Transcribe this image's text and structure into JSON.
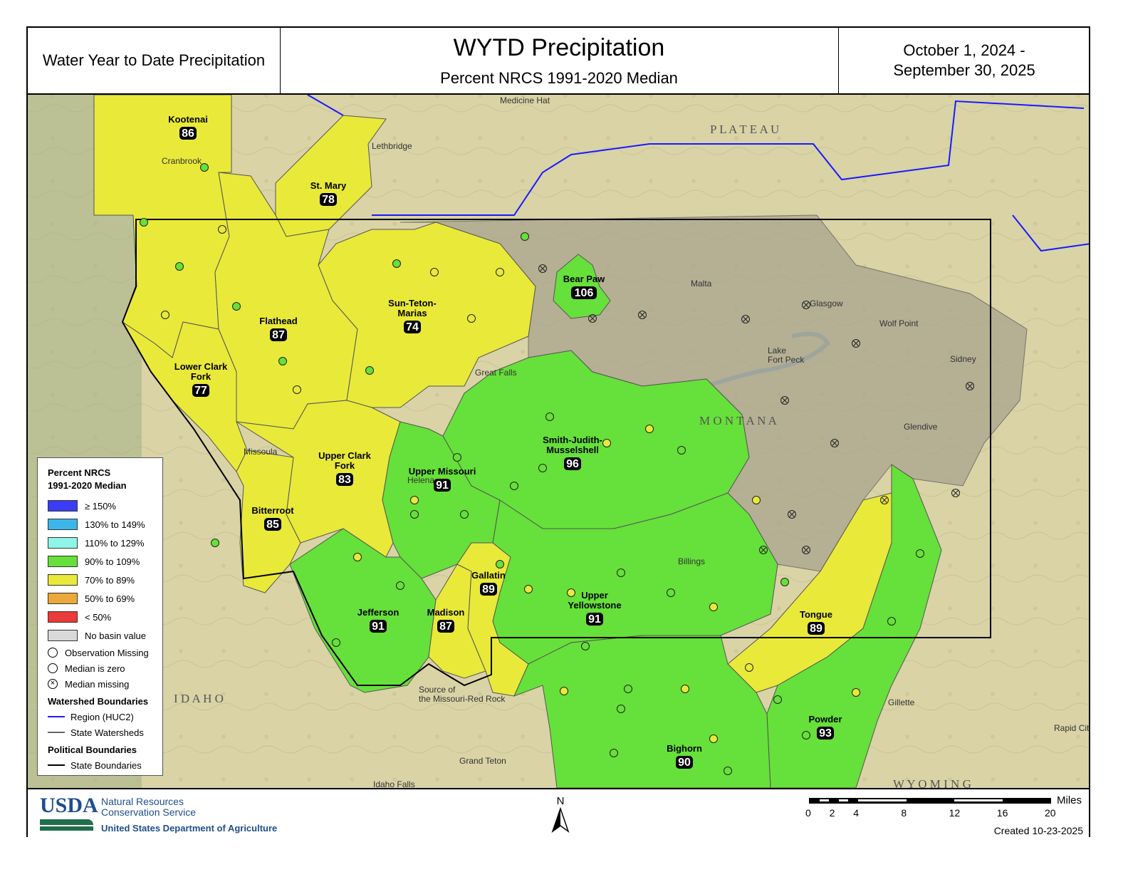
{
  "header": {
    "left_title": "Water Year to Date Precipitation",
    "title": "WYTD Precipitation",
    "subtitle": "Percent NRCS 1991-2020 Median",
    "date_line1": "October 1, 2024 -",
    "date_line2": "September 30, 2025"
  },
  "colors": {
    "ge150": "#3b3cf5",
    "130_149": "#3cb6ea",
    "110_129": "#8ff5e6",
    "90_109": "#66e03a",
    "70_89": "#e9e93a",
    "50_69": "#eaa93a",
    "lt50": "#ea3a3a",
    "no_value": "#d9d9d9"
  },
  "basins": [
    {
      "name": "Kootenai",
      "value": "86",
      "class": "70_89"
    },
    {
      "name": "St. Mary",
      "value": "78",
      "class": "70_89"
    },
    {
      "name": "Flathead",
      "value": "87",
      "class": "70_89"
    },
    {
      "name": "Sun-Teton-\nMarias",
      "value": "74",
      "class": "70_89"
    },
    {
      "name": "Lower Clark\nFork",
      "value": "77",
      "class": "70_89"
    },
    {
      "name": "Bear Paw",
      "value": "106",
      "class": "90_109"
    },
    {
      "name": "Upper Clark\nFork",
      "value": "83",
      "class": "70_89"
    },
    {
      "name": "Bitterroot",
      "value": "85",
      "class": "70_89"
    },
    {
      "name": "Upper Missouri",
      "value": "91",
      "class": "90_109"
    },
    {
      "name": "Smith-Judith-\nMusselshell",
      "value": "96",
      "class": "90_109"
    },
    {
      "name": "Jefferson",
      "value": "91",
      "class": "90_109"
    },
    {
      "name": "Madison",
      "value": "87",
      "class": "70_89"
    },
    {
      "name": "Gallatin",
      "value": "89",
      "class": "70_89"
    },
    {
      "name": "Upper\nYellowstone",
      "value": "91",
      "class": "90_109"
    },
    {
      "name": "Tongue",
      "value": "89",
      "class": "70_89"
    },
    {
      "name": "Powder",
      "value": "93",
      "class": "90_109"
    },
    {
      "name": "Bighorn",
      "value": "90",
      "class": "90_109"
    }
  ],
  "places": [
    "Medicine Hat",
    "Lethbridge",
    "Cranbrook",
    "Malta",
    "Glasgow",
    "Wolf Point",
    "Sidney",
    "Glendive",
    "Great Falls",
    "Helena",
    "Missoula",
    "Billings",
    "Lake\nFort Peck",
    "M O N T A N A",
    "I D A H O",
    "W Y O M I N G",
    "Grand Teton",
    "Idaho Falls",
    "Gillette",
    "Rapid City",
    "P L A T E A U",
    "Source of\nthe Missouri-Red Rock"
  ],
  "legend": {
    "title1": "Percent NRCS",
    "title2": "1991-2020 Median",
    "items": [
      "≥ 150%",
      "130% to 149%",
      "110% to 129%",
      "90% to 109%",
      "70% to 89%",
      "50% to 69%",
      "< 50%",
      "No basin value"
    ],
    "symbols": [
      "Observation Missing",
      "Median is zero",
      "Median missing"
    ],
    "watershed_title": "Watershed Boundaries",
    "watershed_items": [
      "Region (HUC2)",
      "State Watersheds"
    ],
    "political_title": "Political Boundaries",
    "political_items": [
      "State Boundaries"
    ]
  },
  "footer": {
    "agency1": "Natural Resources",
    "agency2": "Conservation Service",
    "usda": "USDA",
    "department": "United States Department of Agriculture",
    "north": "N",
    "scale_unit": "Miles",
    "scale_ticks": [
      "0",
      "2",
      "4",
      "8",
      "12",
      "16",
      "20"
    ],
    "created": "Created 10-23-2025"
  }
}
